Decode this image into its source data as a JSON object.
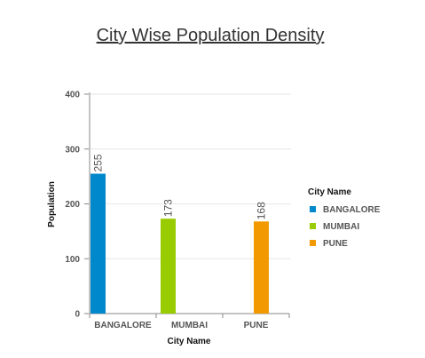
{
  "chart_data": {
    "type": "bar",
    "title": "City Wise Population Density",
    "xlabel": "City Name",
    "ylabel": "Population",
    "categories": [
      "BANGALORE",
      "MUMBAI",
      "PUNE"
    ],
    "values": [
      255,
      173,
      168
    ],
    "colors": [
      "#0088cc",
      "#99cc00",
      "#f29900"
    ],
    "ylim": [
      0,
      400
    ],
    "yticks": [
      "0",
      "100",
      "200",
      "300",
      "400"
    ],
    "grid": true,
    "legend": {
      "title": "City Name",
      "position": "right",
      "items": [
        "BANGALORE",
        "MUMBAI",
        "PUNE"
      ]
    }
  }
}
